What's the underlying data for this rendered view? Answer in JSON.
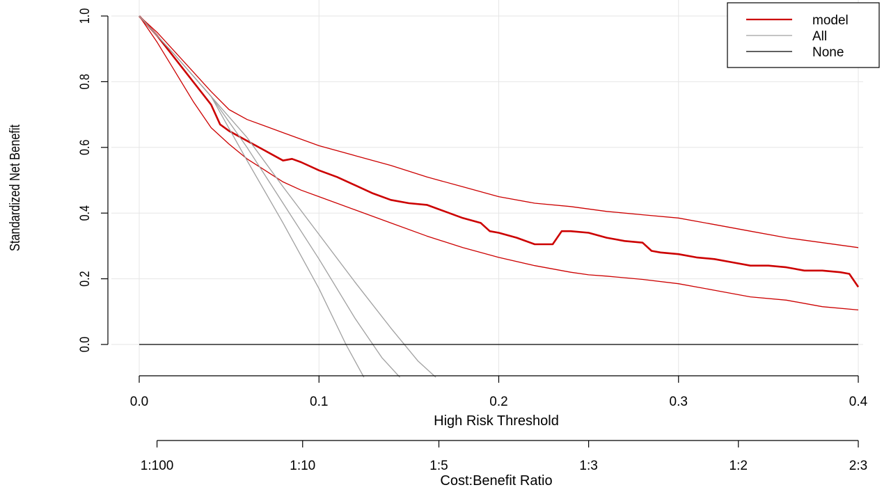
{
  "chart_data": {
    "type": "line",
    "xlabel": "High Risk Threshold",
    "ylabel": "Standardized Net Benefit",
    "xlim": [
      0.0,
      0.4
    ],
    "ylim": [
      -0.1,
      1.0
    ],
    "x_ticks": [
      "0.0",
      "0.1",
      "0.2",
      "0.3",
      "0.4"
    ],
    "y_ticks": [
      "0.0",
      "0.2",
      "0.4",
      "0.6",
      "0.8",
      "1.0"
    ],
    "grid": true,
    "secondary_axis": {
      "label": "Cost:Benefit Ratio",
      "ticks": [
        {
          "label": "1:100",
          "x": 0.0099
        },
        {
          "label": "1:10",
          "x": 0.0909
        },
        {
          "label": "1:5",
          "x": 0.1667
        },
        {
          "label": "1:3",
          "x": 0.25
        },
        {
          "label": "1:2",
          "x": 0.3333
        },
        {
          "label": "2:3",
          "x": 0.4
        }
      ]
    },
    "legend": {
      "position": "top-right",
      "entries": [
        {
          "label": "model",
          "color": "#cc0000"
        },
        {
          "label": "All",
          "color": "#a0a0a0"
        },
        {
          "label": "None",
          "color": "#000000"
        }
      ]
    },
    "series": [
      {
        "name": "model",
        "color": "#cc0000",
        "x": [
          0.0,
          0.01,
          0.02,
          0.03,
          0.04,
          0.045,
          0.05,
          0.06,
          0.07,
          0.08,
          0.085,
          0.09,
          0.1,
          0.11,
          0.12,
          0.13,
          0.14,
          0.15,
          0.16,
          0.17,
          0.18,
          0.19,
          0.195,
          0.2,
          0.21,
          0.22,
          0.225,
          0.23,
          0.235,
          0.24,
          0.25,
          0.26,
          0.27,
          0.28,
          0.285,
          0.29,
          0.3,
          0.31,
          0.32,
          0.33,
          0.34,
          0.35,
          0.36,
          0.37,
          0.38,
          0.39,
          0.395,
          0.4
        ],
        "y": [
          1.0,
          0.94,
          0.87,
          0.8,
          0.73,
          0.67,
          0.65,
          0.62,
          0.59,
          0.56,
          0.565,
          0.555,
          0.53,
          0.51,
          0.485,
          0.46,
          0.44,
          0.43,
          0.425,
          0.405,
          0.385,
          0.37,
          0.345,
          0.34,
          0.325,
          0.305,
          0.305,
          0.305,
          0.345,
          0.345,
          0.34,
          0.325,
          0.315,
          0.31,
          0.285,
          0.28,
          0.275,
          0.265,
          0.26,
          0.25,
          0.24,
          0.24,
          0.235,
          0.225,
          0.225,
          0.22,
          0.215,
          0.175
        ]
      },
      {
        "name": "model-upper",
        "color": "#cc0000",
        "x": [
          0.0,
          0.01,
          0.02,
          0.03,
          0.04,
          0.05,
          0.06,
          0.07,
          0.08,
          0.09,
          0.1,
          0.12,
          0.14,
          0.16,
          0.18,
          0.2,
          0.22,
          0.24,
          0.26,
          0.28,
          0.3,
          0.32,
          0.34,
          0.36,
          0.38,
          0.4
        ],
        "y": [
          1.0,
          0.95,
          0.89,
          0.83,
          0.77,
          0.715,
          0.685,
          0.665,
          0.645,
          0.625,
          0.605,
          0.575,
          0.545,
          0.51,
          0.48,
          0.45,
          0.43,
          0.42,
          0.405,
          0.395,
          0.385,
          0.365,
          0.345,
          0.325,
          0.31,
          0.295
        ]
      },
      {
        "name": "model-lower",
        "color": "#cc0000",
        "x": [
          0.0,
          0.01,
          0.02,
          0.03,
          0.04,
          0.05,
          0.06,
          0.07,
          0.08,
          0.09,
          0.1,
          0.12,
          0.14,
          0.16,
          0.18,
          0.2,
          0.22,
          0.24,
          0.25,
          0.26,
          0.28,
          0.3,
          0.32,
          0.34,
          0.36,
          0.38,
          0.4
        ],
        "y": [
          1.0,
          0.92,
          0.83,
          0.74,
          0.66,
          0.61,
          0.565,
          0.53,
          0.495,
          0.47,
          0.45,
          0.41,
          0.37,
          0.33,
          0.295,
          0.265,
          0.24,
          0.22,
          0.212,
          0.208,
          0.198,
          0.185,
          0.165,
          0.145,
          0.135,
          0.115,
          0.105
        ]
      },
      {
        "name": "All",
        "color": "#a0a0a0",
        "x": [
          0.0,
          0.02,
          0.04,
          0.06,
          0.08,
          0.1,
          0.12,
          0.14,
          0.155,
          0.165
        ],
        "y": [
          1.0,
          0.88,
          0.755,
          0.63,
          0.48,
          0.335,
          0.19,
          0.05,
          -0.05,
          -0.1
        ]
      },
      {
        "name": "All-lower",
        "color": "#a0a0a0",
        "x": [
          0.0,
          0.02,
          0.04,
          0.06,
          0.08,
          0.1,
          0.12,
          0.135,
          0.145
        ],
        "y": [
          1.0,
          0.88,
          0.755,
          0.6,
          0.43,
          0.26,
          0.08,
          -0.04,
          -0.1
        ]
      },
      {
        "name": "All-lowest",
        "color": "#a0a0a0",
        "x": [
          0.0,
          0.02,
          0.04,
          0.06,
          0.08,
          0.1,
          0.115,
          0.125
        ],
        "y": [
          1.0,
          0.88,
          0.755,
          0.56,
          0.37,
          0.17,
          0.0,
          -0.1
        ]
      },
      {
        "name": "None",
        "color": "#000000",
        "x": [
          0.0,
          0.4
        ],
        "y": [
          0.0,
          0.0
        ]
      }
    ]
  }
}
